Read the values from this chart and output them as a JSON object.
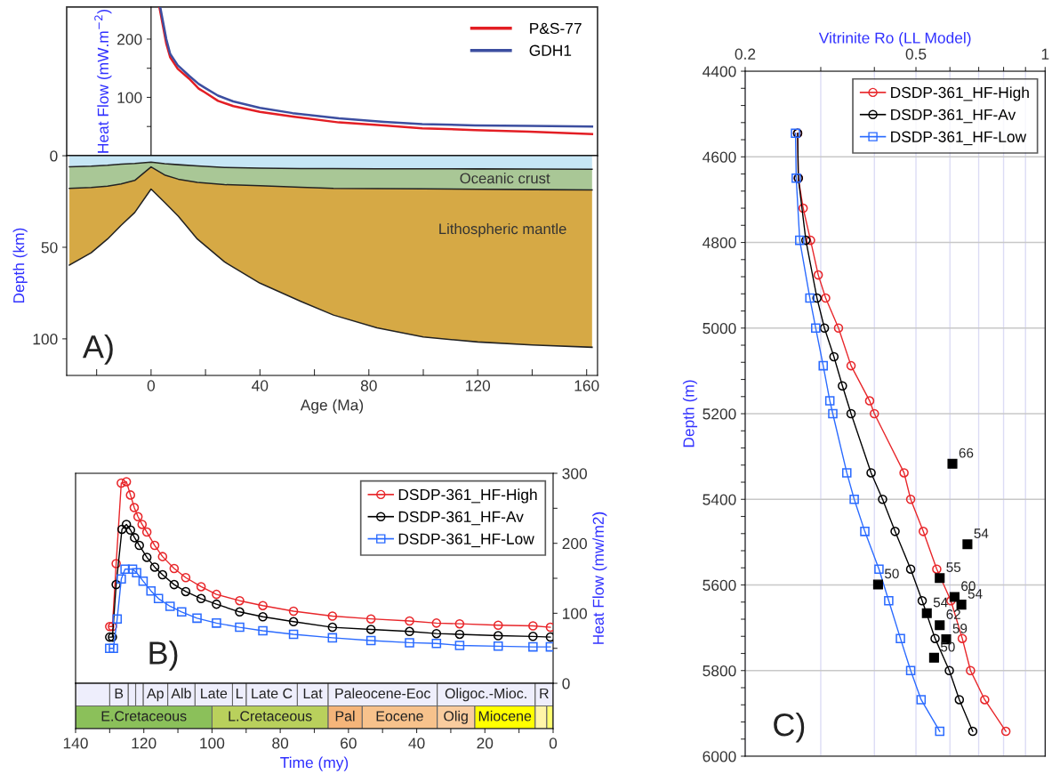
{
  "chart_data": [
    {
      "type": "line",
      "ylabel": "Heat Flow (mW.m$^{−2}$)",
      "xlim": [
        -31,
        164
      ],
      "ylim": [
        0,
        255
      ],
      "yticks": [
        {
          "value": 50,
          "label": null
        },
        100,
        {
          "value": 150,
          "label": null
        },
        200
      ],
      "tick_labels": "y",
      "legend": "top right",
      "series": [
        {
          "name": "P&S-77",
          "color": "#e31e24",
          "x": [
            3.1,
            5.6,
            7,
            9.8,
            14,
            17.5,
            19.6,
            24.6,
            30.2,
            40,
            52,
            69,
            85.6,
            99.6,
            119,
            139,
            162
          ],
          "values": [
            254,
            192,
            169,
            149,
            132,
            115,
            109,
            94,
            85,
            75,
            67,
            57,
            52,
            47,
            44,
            41,
            37
          ]
        },
        {
          "name": "GDH1",
          "color": "#3c4ea0",
          "x": [
            3.4,
            5.6,
            7,
            9.8,
            14,
            17.5,
            19.6,
            24.6,
            30.2,
            40,
            52,
            69,
            85.6,
            99.6,
            119,
            139,
            162
          ],
          "values": [
            254,
            200,
            175,
            155,
            137,
            123,
            117,
            103,
            93,
            82,
            73,
            64,
            58,
            54,
            52,
            51,
            50
          ]
        }
      ]
    },
    {
      "type": "area",
      "stacked": true,
      "xlabel": "Age (Ma)",
      "ylabel": "Depth (km)",
      "xlim": [
        -31,
        164
      ],
      "ylim": [
        120,
        0
      ],
      "xticks": [
        {
          "value": -20,
          "label": null
        },
        0,
        {
          "value": 20,
          "label": null
        },
        40,
        {
          "value": 60,
          "label": null
        },
        80,
        {
          "value": 100,
          "label": null
        },
        120,
        {
          "value": 140,
          "label": null
        },
        160
      ],
      "yticks": [
        0,
        50,
        100
      ],
      "x": [
        -30,
        -22,
        -16,
        -11,
        -6,
        0,
        5,
        10,
        17,
        27,
        40,
        55,
        67,
        83,
        100,
        120,
        140,
        162
      ],
      "series": [
        {
          "color": "#c6e6f5",
          "values": [
            6,
            5.7,
            5.2,
            4.6,
            4.2,
            3.5,
            4.3,
            4.9,
            5.6,
            6.4,
            6.8,
            7,
            7,
            7.1,
            7.1,
            7.2,
            7.3,
            7.4
          ]
        },
        {
          "color": "#a9c796",
          "values": [
            11.8,
            11.7,
            11.4,
            10.8,
            9.3,
            2.6,
            6.2,
            7.9,
            9,
            9.4,
            9.6,
            10.2,
            10.8,
            10.9,
            11,
            11.1,
            11.2,
            11.3
          ]
        },
        {
          "color": "#d6a945",
          "values": [
            41.9,
            35.6,
            28.9,
            22.6,
            17.5,
            12.1,
            15,
            20.2,
            30.9,
            42.2,
            53.2,
            62.3,
            69.2,
            76,
            80.9,
            83.4,
            84.8,
            85.9
          ]
        }
      ],
      "annotations": [
        "A)",
        "Oceanic crust",
        "Lithospheric mantle"
      ]
    },
    {
      "type": "line",
      "ylabel": "Heat Flow (mw/m2)",
      "xlim": [
        140,
        0
      ],
      "ylim": [
        0,
        300
      ],
      "yticks": [
        0,
        {
          "value": 50,
          "label": null
        },
        100,
        {
          "value": 150,
          "label": null
        },
        200,
        {
          "value": 250,
          "label": null
        },
        300
      ],
      "tick_labels": "y",
      "legend": "top right",
      "line_style": "solid",
      "series": [
        {
          "name": "DSDP-361_HF-High",
          "color": "#e8262a",
          "marker": "circle",
          "x": [
            130.0,
            129.2,
            128.1,
            126.6,
            125.1,
            123.9,
            122.8,
            121.7,
            120.5,
            119.1,
            116.8,
            114.5,
            111.1,
            107.7,
            103.2,
            98.7,
            91.9,
            85.1,
            76.1,
            64.7,
            53.4,
            42.1,
            34.2,
            27.4,
            16.1,
            5.9,
            0.8
          ],
          "values": [
            81,
            81,
            171,
            286,
            288,
            269,
            251,
            238,
            227,
            216,
            197,
            181,
            164,
            151,
            138,
            127,
            118,
            111,
            103,
            96,
            92,
            89,
            86,
            85,
            83,
            82,
            80
          ]
        },
        {
          "name": "DSDP-361_HF-Av",
          "color": "#000000",
          "marker": "circle",
          "x": [
            130.0,
            129.2,
            128.1,
            126.4,
            125.1,
            123.9,
            122.7,
            121.3,
            119.1,
            116.8,
            114.5,
            111.1,
            107.7,
            103.2,
            98.7,
            91.9,
            85.1,
            76.1,
            64.7,
            53.4,
            42.1,
            34.2,
            27.4,
            16.1,
            5.9,
            0.8
          ],
          "values": [
            66,
            66,
            141,
            220,
            227,
            219,
            208,
            197,
            180,
            166,
            155,
            141,
            131,
            121,
            113,
            102,
            95,
            88,
            80,
            77,
            74,
            71,
            70,
            68,
            67,
            66
          ]
        },
        {
          "name": "DSDP-361_HF-Low",
          "color": "#2b6bff",
          "marker": "square",
          "x": [
            130.0,
            128.9,
            127.8,
            126.6,
            125.5,
            123.3,
            122.1,
            120.2,
            117.9,
            115.7,
            112.3,
            108.9,
            104.4,
            98.7,
            91.9,
            85.1,
            76.1,
            64.7,
            53.4,
            42.1,
            34.2,
            27.4,
            16.1,
            5.9,
            0.8
          ],
          "values": [
            50,
            50,
            92,
            149,
            163,
            163,
            158,
            146,
            132,
            121,
            110,
            102,
            93,
            86,
            80,
            75,
            70,
            65,
            61,
            58,
            57,
            54,
            53,
            52,
            52
          ]
        }
      ],
      "annotations": [
        "B)"
      ]
    },
    {
      "type": "bar",
      "orientation": "horizontal",
      "stacked": true,
      "categories": [
        null,
        null
      ],
      "xlabel": "Time (my)",
      "xlim": [
        140,
        0
      ],
      "xticks": [
        140,
        {
          "value": 130,
          "label": null
        },
        120,
        {
          "value": 110,
          "label": null
        },
        100,
        {
          "value": 90,
          "label": null
        },
        80,
        {
          "value": 70,
          "label": null
        },
        60,
        {
          "value": 50,
          "label": null
        },
        40,
        {
          "value": 30,
          "label": null
        },
        20,
        {
          "value": 10,
          "label": null
        },
        0
      ],
      "series": [
        {
          "values": [
            5.3,
            1.9
          ],
          "colors": [
            "#eeeefc",
            "#ffff70"
          ],
          "value_labels": [
            "R",
            null
          ]
        },
        {
          "values": [
            28.7,
            3.4
          ],
          "colors": [
            "#eeeefc",
            "#fff5a8"
          ],
          "value_labels": [
            "Oligoc.-Mioc.",
            null
          ]
        },
        {
          "values": [
            32,
            17.7
          ],
          "colors": [
            "#eeeefc",
            "#ffff00"
          ],
          "value_labels": [
            "Paleocene-Eoc",
            "Miocene"
          ]
        },
        {
          "values": [
            9,
            11
          ],
          "colors": [
            "#eeeefc",
            "#f9cc9e"
          ],
          "value_labels": [
            "Lat",
            "Olig"
          ]
        },
        {
          "values": [
            15,
            22
          ],
          "colors": [
            "#eeeefc",
            "#f7c28c"
          ],
          "value_labels": [
            "Late C",
            "Eocene"
          ]
        },
        {
          "values": [
            4,
            10
          ],
          "colors": [
            "#eeeefc",
            "#f5b57a"
          ],
          "value_labels": [
            "L",
            "Pal"
          ]
        },
        {
          "values": [
            11,
            34
          ],
          "colors": [
            "#eeeefc",
            "#b9d05c"
          ],
          "value_labels": [
            "Late",
            "L.Cretaceous"
          ]
        },
        {
          "values": [
            8,
            40
          ],
          "colors": [
            "#eeeefc",
            "#8bc05a"
          ],
          "value_labels": [
            "Alb",
            "E.Cretaceous"
          ]
        },
        {
          "values": [
            7.2,
            null
          ],
          "colors": [
            "#eeeefc",
            null
          ],
          "value_labels": [
            "Ap",
            null
          ]
        },
        {
          "values": [
            2.2,
            null
          ],
          "colors": [
            "#eeeefc",
            null
          ],
          "value_labels": [
            null,
            null
          ]
        },
        {
          "values": [
            2.2,
            null
          ],
          "colors": [
            "#eeeefc",
            null
          ],
          "value_labels": [
            null,
            null
          ]
        },
        {
          "values": [
            5.4,
            null
          ],
          "colors": [
            "#eeeefc",
            null
          ],
          "value_labels": [
            "B",
            null
          ]
        },
        {
          "values": [
            10,
            null
          ],
          "colors": [
            "#eeeefc",
            null
          ],
          "value_labels": [
            null,
            null
          ]
        }
      ]
    },
    {
      "type": "line",
      "xlabel": "Vitrinite Ro (LL Model)",
      "ylabel": "Depth (m)",
      "log": "x",
      "grid": true,
      "legend": "top right",
      "line_style": "solid",
      "xlim": [
        0.2,
        1
      ],
      "ylim": [
        6000,
        4400
      ],
      "xticks": [
        0.2,
        {
          "value": 0.3,
          "label": null
        },
        {
          "value": 0.4,
          "label": null
        },
        0.5,
        {
          "value": 0.6,
          "label": null
        },
        {
          "value": 0.7,
          "label": null
        },
        {
          "value": 0.8,
          "label": null
        },
        {
          "value": 0.9,
          "label": null
        },
        1
      ],
      "yticks": [
        4400,
        {
          "value": 4440,
          "label": null
        },
        {
          "value": 4480,
          "label": null
        },
        {
          "value": 4520,
          "label": null
        },
        {
          "value": 4560,
          "label": null
        },
        4600,
        {
          "value": 4640,
          "label": null
        },
        {
          "value": 4680,
          "label": null
        },
        {
          "value": 4720,
          "label": null
        },
        {
          "value": 4760,
          "label": null
        },
        4800,
        {
          "value": 4840,
          "label": null
        },
        {
          "value": 4880,
          "label": null
        },
        {
          "value": 4920,
          "label": null
        },
        {
          "value": 4960,
          "label": null
        },
        5000,
        {
          "value": 5040,
          "label": null
        },
        {
          "value": 5080,
          "label": null
        },
        {
          "value": 5120,
          "label": null
        },
        {
          "value": 5160,
          "label": null
        },
        5200,
        {
          "value": 5240,
          "label": null
        },
        {
          "value": 5280,
          "label": null
        },
        {
          "value": 5320,
          "label": null
        },
        {
          "value": 5360,
          "label": null
        },
        5400,
        {
          "value": 5440,
          "label": null
        },
        {
          "value": 5480,
          "label": null
        },
        {
          "value": 5520,
          "label": null
        },
        {
          "value": 5560,
          "label": null
        },
        5600,
        {
          "value": 5640,
          "label": null
        },
        {
          "value": 5680,
          "label": null
        },
        {
          "value": 5720,
          "label": null
        },
        {
          "value": 5760,
          "label": null
        },
        5800,
        {
          "value": 5840,
          "label": null
        },
        {
          "value": 5880,
          "label": null
        },
        {
          "value": 5920,
          "label": null
        },
        {
          "value": 5960,
          "label": null
        },
        6000
      ],
      "series": [
        {
          "name": "DSDP-361_HF-High",
          "color": "#e8262a",
          "marker": "circle",
          "x": [
            0.265,
            0.266,
            0.273,
            0.284,
            0.296,
            0.308,
            0.33,
            0.353,
            0.39,
            0.4,
            0.469,
            0.486,
            0.52,
            0.559,
            0.603,
            0.641,
            0.67,
            0.723,
            0.81
          ],
          "values": [
            4545,
            4650,
            4720,
            4795,
            4876,
            4930,
            5000,
            5088,
            5170,
            5200,
            5338,
            5400,
            5475,
            5563,
            5637,
            5725,
            5800,
            5868,
            5942
          ]
        },
        {
          "name": "DSDP-361_HF-Av",
          "color": "#000000",
          "marker": "circle",
          "x": [
            0.265,
            0.266,
            0.277,
            0.294,
            0.306,
            0.322,
            0.337,
            0.353,
            0.393,
            0.418,
            0.447,
            0.486,
            0.517,
            0.554,
            0.598,
            0.631,
            0.678
          ],
          "values": [
            4545,
            4650,
            4795,
            4930,
            5000,
            5067,
            5135,
            5200,
            5338,
            5400,
            5475,
            5563,
            5637,
            5725,
            5800,
            5868,
            5942
          ]
        },
        {
          "name": "DSDP-361_HF-Low",
          "color": "#2b6bff",
          "marker": "square",
          "x": [
            0.262,
            0.263,
            0.268,
            0.283,
            0.292,
            0.304,
            0.315,
            0.32,
            0.345,
            0.359,
            0.38,
            0.41,
            0.432,
            0.46,
            0.486,
            0.514,
            0.568
          ],
          "values": [
            4545,
            4650,
            4795,
            4930,
            5000,
            5088,
            5170,
            5200,
            5338,
            5400,
            5475,
            5563,
            5637,
            5725,
            5800,
            5868,
            5942
          ]
        },
        {
          "type": "scatter",
          "color": "#000000",
          "marker": "square",
          "x": [
            0.608,
            0.659,
            0.568,
            0.408,
            0.615,
            0.638,
            0.53,
            0.568,
            0.588,
            0.551
          ],
          "values": [
            5317,
            5505,
            5584,
            5599,
            5628,
            5646,
            5666,
            5694,
            5727,
            5770
          ]
        }
      ],
      "annotations": [
        "C)",
        {
          "text": "66",
          "x": 0.608,
          "y": 5317
        },
        {
          "text": "54",
          "x": 0.659,
          "y": 5505
        },
        {
          "text": "55",
          "x": 0.568,
          "y": 5584
        },
        {
          "text": "50",
          "x": 0.408,
          "y": 5599
        },
        {
          "text": "60",
          "x": 0.615,
          "y": 5628
        },
        {
          "text": "54",
          "x": 0.638,
          "y": 5646
        },
        {
          "text": "54",
          "x": 0.53,
          "y": 5666
        },
        {
          "text": "62",
          "x": 0.568,
          "y": 5694
        },
        {
          "text": "59",
          "x": 0.588,
          "y": 5727
        },
        {
          "text": "50",
          "x": 0.551,
          "y": 5770
        }
      ]
    }
  ]
}
